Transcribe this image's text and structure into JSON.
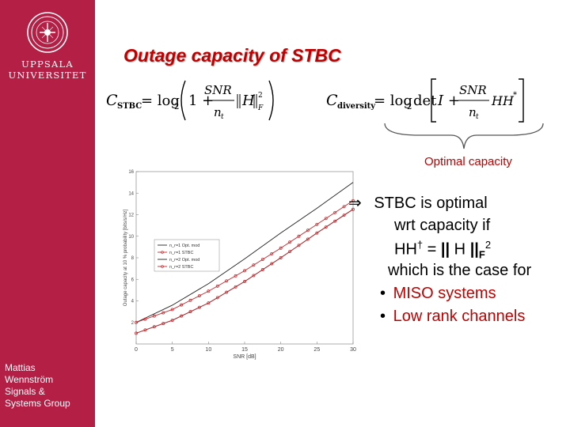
{
  "sidebar": {
    "university_line1": "UPPSALA",
    "university_line2": "UNIVERSITET",
    "author_lines": [
      "Mattias",
      "Wennström",
      "Signals &",
      "Systems Group"
    ]
  },
  "slide": {
    "title": "Outage capacity of STBC",
    "brace_label": "Optimal capacity"
  },
  "formula_left": {
    "lhs": "C",
    "lhs_sub": "STBC",
    "eq": "= log",
    "log_base": "2",
    "one": "1 +",
    "numerator": "SNR",
    "denominator": "n",
    "denominator_sub": "t",
    "norm_symbol": "H",
    "norm_sub": "F",
    "norm_sup": "2"
  },
  "formula_right": {
    "lhs": "C",
    "lhs_sub": "diversity",
    "eq": "= log",
    "log_base": "2",
    "det": "det",
    "identity": "I +",
    "numerator": "SNR",
    "denominator": "n",
    "denominator_sub": "t",
    "product": "HH",
    "product_sup": "*"
  },
  "bullets": {
    "arrow": "⇒",
    "line1": "STBC is optimal",
    "line2": "wrt capacity if",
    "eq_lhs": "HH",
    "eq_dagger": "†",
    "eq_mid": " = ",
    "eq_norm_open": "||",
    "eq_symbol": " H ",
    "eq_norm_close": "||",
    "eq_sub": "F",
    "eq_sup": "2",
    "line4": "which is the case for",
    "bullet_char": "•",
    "item1": "MISO systems",
    "item2": "Low rank channels"
  },
  "colors": {
    "sidebar": "#b41f45",
    "title": "#c00000",
    "highlight": "#c00000",
    "series_black": "#222222",
    "series_red": "#c0282d"
  },
  "chart_data": {
    "type": "line",
    "xlabel": "SNR [dB]",
    "ylabel": "Outage capacity at 10 % probability [bits/s/Hz]",
    "xlim": [
      0,
      30
    ],
    "ylim": [
      0,
      16
    ],
    "x_ticks": [
      "0",
      "5",
      "10",
      "15",
      "20",
      "25",
      "30"
    ],
    "y_ticks": [
      "2",
      "4",
      "6",
      "8",
      "10",
      "12",
      "14",
      "16"
    ],
    "grid": false,
    "legend_position": "top-left",
    "series": [
      {
        "name": "n_r=1 Opt. mod",
        "x": [
          0,
          5,
          10,
          15,
          20,
          25,
          30
        ],
        "values": [
          1.0,
          2.2,
          3.8,
          5.8,
          8.0,
          10.3,
          12.5
        ],
        "color": "#222222",
        "marker": "none"
      },
      {
        "name": "n_r=1 STBC",
        "x": [
          0,
          5,
          10,
          15,
          20,
          25,
          30
        ],
        "values": [
          1.0,
          2.2,
          3.8,
          5.8,
          8.0,
          10.3,
          12.5
        ],
        "color": "#c0282d",
        "marker": "circle"
      },
      {
        "name": "n_r=2 Opt. mod",
        "x": [
          0,
          5,
          10,
          15,
          20,
          25,
          30
        ],
        "values": [
          2.0,
          3.6,
          5.6,
          7.9,
          10.3,
          12.6,
          15.0
        ],
        "color": "#222222",
        "marker": "none"
      },
      {
        "name": "n_r=2 STBC",
        "x": [
          0,
          5,
          10,
          15,
          20,
          25,
          30
        ],
        "values": [
          2.0,
          3.2,
          4.9,
          6.8,
          8.9,
          11.1,
          13.3
        ],
        "color": "#c0282d",
        "marker": "circle"
      }
    ]
  }
}
